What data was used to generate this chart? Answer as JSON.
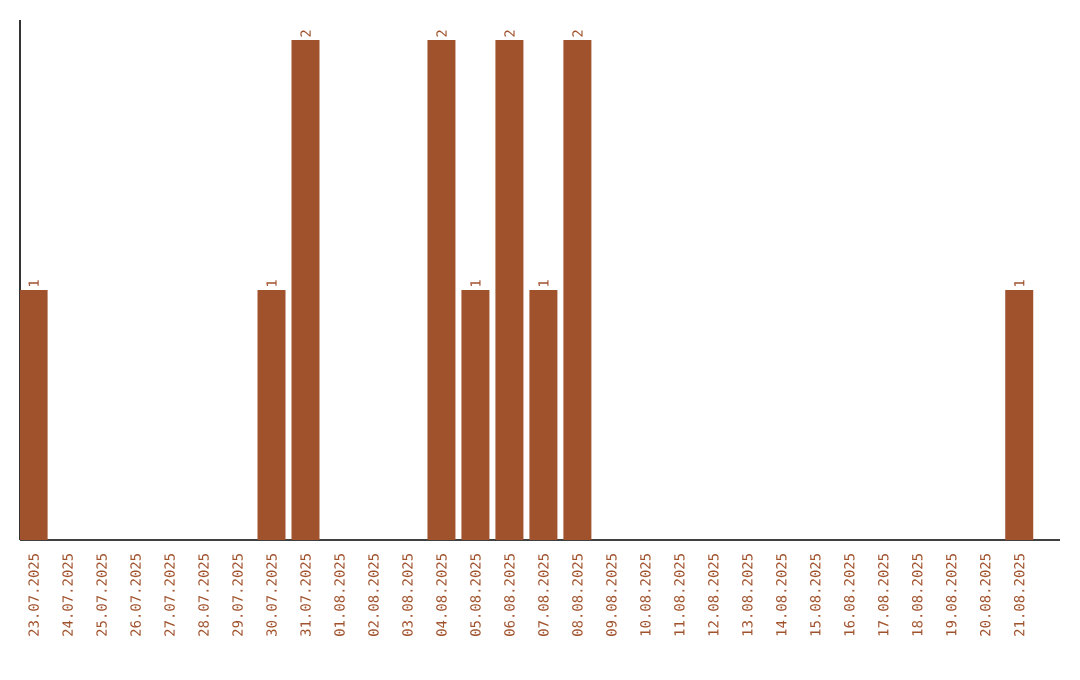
{
  "chart_data": {
    "type": "bar",
    "categories": [
      "23.07.2025",
      "24.07.2025",
      "25.07.2025",
      "26.07.2025",
      "27.07.2025",
      "28.07.2025",
      "29.07.2025",
      "30.07.2025",
      "31.07.2025",
      "01.08.2025",
      "02.08.2025",
      "03.08.2025",
      "04.08.2025",
      "05.08.2025",
      "06.08.2025",
      "07.08.2025",
      "08.08.2025",
      "09.08.2025",
      "10.08.2025",
      "11.08.2025",
      "12.08.2025",
      "13.08.2025",
      "14.08.2025",
      "15.08.2025",
      "16.08.2025",
      "17.08.2025",
      "18.08.2025",
      "19.08.2025",
      "20.08.2025",
      "21.08.2025"
    ],
    "values": [
      1,
      0,
      0,
      0,
      0,
      0,
      0,
      1,
      2,
      0,
      0,
      0,
      2,
      1,
      2,
      1,
      2,
      0,
      0,
      0,
      0,
      0,
      0,
      0,
      0,
      0,
      0,
      0,
      0,
      1
    ],
    "value_labels": [
      "1",
      null,
      null,
      null,
      null,
      null,
      null,
      "1",
      "2",
      null,
      null,
      null,
      "2",
      "1",
      "2",
      "1",
      "2",
      null,
      null,
      null,
      null,
      null,
      null,
      null,
      null,
      null,
      null,
      null,
      null,
      "1"
    ],
    "color": "#a0522d",
    "ylim": [
      0,
      2.08
    ],
    "tick_labels": "x",
    "grid": false
  }
}
